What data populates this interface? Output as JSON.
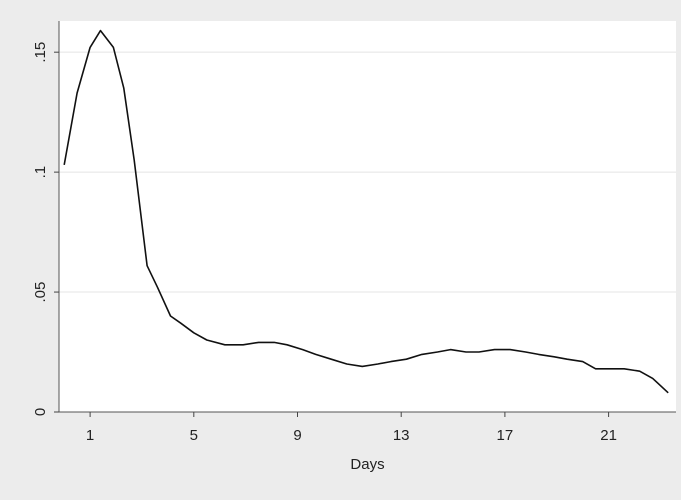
{
  "chart_data": {
    "type": "line",
    "title": "",
    "xlabel": "Days",
    "ylabel": "",
    "xlim": [
      -0.2,
      23.6
    ],
    "ylim": [
      0,
      0.163
    ],
    "x_ticks": [
      1,
      5,
      9,
      13,
      17,
      21
    ],
    "x_tick_labels": [
      "1",
      "5",
      "9",
      "13",
      "17",
      "21"
    ],
    "y_ticks": [
      0,
      0.05,
      0.1,
      0.15
    ],
    "y_tick_labels": [
      "0",
      ".05",
      ".1",
      ".15"
    ],
    "grid": "horizontal",
    "legend": "none",
    "colors": {
      "outer_background": "#ececec",
      "plot_background": "#ffffff",
      "gridline": "#e4e4e4",
      "line": "#111111"
    },
    "series": [
      {
        "x": [
          0,
          0.5,
          1,
          1.4,
          1.9,
          2.3,
          2.7,
          3.2,
          3.6,
          4.1,
          4.5,
          5,
          5.5,
          6.2,
          6.9,
          7.5,
          8.1,
          8.6,
          9.2,
          9.7,
          10.3,
          10.9,
          11.5,
          12.1,
          12.6,
          13.2,
          13.8,
          14.4,
          14.9,
          15.5,
          16,
          16.6,
          17.2,
          17.8,
          18.3,
          18.9,
          19.4,
          20,
          20.5,
          21.1,
          21.6,
          22.2,
          22.7,
          23.3
        ],
        "y": [
          0.103,
          0.133,
          0.152,
          0.159,
          0.152,
          0.135,
          0.105,
          0.061,
          0.052,
          0.04,
          0.037,
          0.033,
          0.03,
          0.028,
          0.028,
          0.029,
          0.029,
          0.028,
          0.026,
          0.024,
          0.022,
          0.02,
          0.019,
          0.02,
          0.021,
          0.022,
          0.024,
          0.025,
          0.026,
          0.025,
          0.025,
          0.026,
          0.026,
          0.025,
          0.024,
          0.023,
          0.022,
          0.021,
          0.018,
          0.018,
          0.018,
          0.017,
          0.014,
          0.008
        ]
      }
    ]
  }
}
